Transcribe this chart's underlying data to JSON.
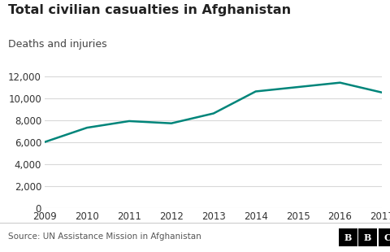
{
  "title": "Total civilian casualties in Afghanistan",
  "subtitle": "Deaths and injuries",
  "years": [
    2009,
    2010,
    2011,
    2012,
    2013,
    2014,
    2015,
    2016,
    2017
  ],
  "values": [
    6000,
    7300,
    7900,
    7700,
    8600,
    10600,
    11000,
    11400,
    10500
  ],
  "line_color": "#00857a",
  "line_width": 1.8,
  "ylim": [
    0,
    12500
  ],
  "yticks": [
    0,
    2000,
    4000,
    6000,
    8000,
    10000,
    12000
  ],
  "background_color": "#ffffff",
  "grid_color": "#d9d9d9",
  "source_text": "Source: UN Assistance Mission in Afghanistan",
  "bbc_text": "BBC",
  "title_fontsize": 11.5,
  "subtitle_fontsize": 9,
  "tick_fontsize": 8.5,
  "source_fontsize": 7.5,
  "bbc_box_color": "#000000",
  "bbc_text_color": "#ffffff"
}
